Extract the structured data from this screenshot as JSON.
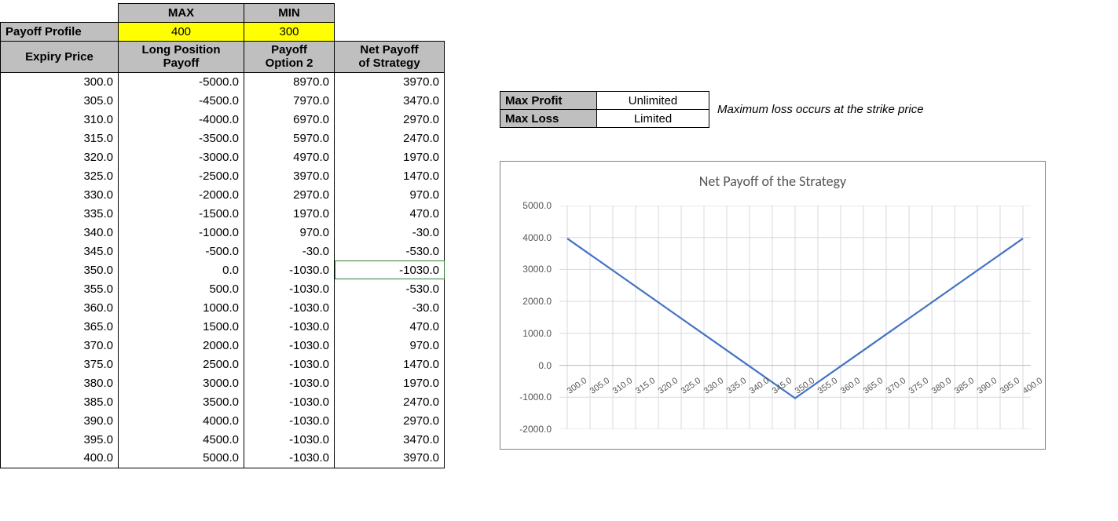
{
  "headers": {
    "max_label": "MAX",
    "min_label": "MIN",
    "payoff_profile": "Payoff Profile",
    "max_value": "400",
    "min_value": "300",
    "expiry_price": "Expiry Price",
    "long_pos": "Long Position\nPayoff",
    "payoff_opt2": "Payoff\nOption 2",
    "net_payoff": "Net Payoff\nof Strategy"
  },
  "table_rows": [
    {
      "expiry": "300.0",
      "long": "-5000.0",
      "opt2": "8970.0",
      "net": "3970.0"
    },
    {
      "expiry": "305.0",
      "long": "-4500.0",
      "opt2": "7970.0",
      "net": "3470.0"
    },
    {
      "expiry": "310.0",
      "long": "-4000.0",
      "opt2": "6970.0",
      "net": "2970.0"
    },
    {
      "expiry": "315.0",
      "long": "-3500.0",
      "opt2": "5970.0",
      "net": "2470.0"
    },
    {
      "expiry": "320.0",
      "long": "-3000.0",
      "opt2": "4970.0",
      "net": "1970.0"
    },
    {
      "expiry": "325.0",
      "long": "-2500.0",
      "opt2": "3970.0",
      "net": "1470.0"
    },
    {
      "expiry": "330.0",
      "long": "-2000.0",
      "opt2": "2970.0",
      "net": "970.0"
    },
    {
      "expiry": "335.0",
      "long": "-1500.0",
      "opt2": "1970.0",
      "net": "470.0"
    },
    {
      "expiry": "340.0",
      "long": "-1000.0",
      "opt2": "970.0",
      "net": "-30.0"
    },
    {
      "expiry": "345.0",
      "long": "-500.0",
      "opt2": "-30.0",
      "net": "-530.0"
    },
    {
      "expiry": "350.0",
      "long": "0.0",
      "opt2": "-1030.0",
      "net": "-1030.0"
    },
    {
      "expiry": "355.0",
      "long": "500.0",
      "opt2": "-1030.0",
      "net": "-530.0"
    },
    {
      "expiry": "360.0",
      "long": "1000.0",
      "opt2": "-1030.0",
      "net": "-30.0"
    },
    {
      "expiry": "365.0",
      "long": "1500.0",
      "opt2": "-1030.0",
      "net": "470.0"
    },
    {
      "expiry": "370.0",
      "long": "2000.0",
      "opt2": "-1030.0",
      "net": "970.0"
    },
    {
      "expiry": "375.0",
      "long": "2500.0",
      "opt2": "-1030.0",
      "net": "1470.0"
    },
    {
      "expiry": "380.0",
      "long": "3000.0",
      "opt2": "-1030.0",
      "net": "1970.0"
    },
    {
      "expiry": "385.0",
      "long": "3500.0",
      "opt2": "-1030.0",
      "net": "2470.0"
    },
    {
      "expiry": "390.0",
      "long": "4000.0",
      "opt2": "-1030.0",
      "net": "2970.0"
    },
    {
      "expiry": "395.0",
      "long": "4500.0",
      "opt2": "-1030.0",
      "net": "3470.0"
    },
    {
      "expiry": "400.0",
      "long": "5000.0",
      "opt2": "-1030.0",
      "net": "3970.0"
    }
  ],
  "selected_cell_row": 10,
  "summary": {
    "max_profit_label": "Max Profit",
    "max_profit_value": "Unlimited",
    "max_loss_label": "Max Loss",
    "max_loss_value": "Limited",
    "note": "Maximum loss occurs at the strike price"
  },
  "chart": {
    "title": "Net Payoff of the Strategy",
    "type": "line",
    "x_categories": [
      "300.0",
      "305.0",
      "310.0",
      "315.0",
      "320.0",
      "325.0",
      "330.0",
      "335.0",
      "340.0",
      "345.0",
      "350.0",
      "355.0",
      "360.0",
      "365.0",
      "370.0",
      "375.0",
      "380.0",
      "385.0",
      "390.0",
      "395.0",
      "400.0"
    ],
    "y_values": [
      3970,
      3470,
      2970,
      2470,
      1970,
      1470,
      970,
      470,
      -30,
      -530,
      -1030,
      -530,
      -30,
      470,
      970,
      1470,
      1970,
      2470,
      2970,
      3470,
      3970
    ],
    "y_ticks": [
      -2000,
      -1000,
      0,
      1000,
      2000,
      3000,
      4000,
      5000
    ],
    "ylim": [
      -2000,
      5000
    ],
    "line_color": "#4472c4",
    "line_width": 2.2,
    "grid_color": "#d9d9d9",
    "axis_color": "#bfbfbf",
    "title_fontsize": 18,
    "tick_fontsize": 12,
    "xlabel_rotation": -35,
    "background_color": "#ffffff",
    "x_tick_label_format": "###.0"
  },
  "colors": {
    "grey_header": "#bfbfbf",
    "yellow_highlight": "#ffff00",
    "border": "#000000",
    "text": "#000000",
    "selection": "#2e7d32"
  },
  "fonts": {
    "body": "Arial",
    "chart_title": "Calibri",
    "base_size_pt": 11
  }
}
